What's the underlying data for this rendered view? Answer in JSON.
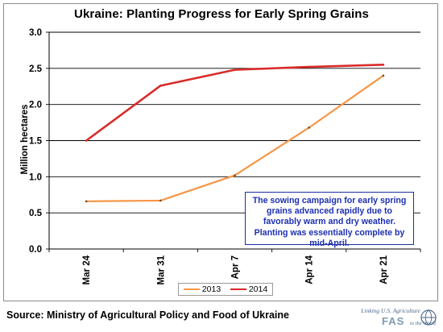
{
  "chart_data": {
    "type": "line",
    "title": "Ukraine:  Planting Progress for Early Spring Grains",
    "xlabel": "",
    "ylabel": "Million hectares",
    "categories": [
      "Mar 24",
      "Mar 31",
      "Apr 7",
      "Apr 14",
      "Apr 21"
    ],
    "ylim": [
      0,
      3
    ],
    "yticks": [
      "0.0",
      "0.5",
      "1.0",
      "1.5",
      "2.0",
      "2.5",
      "3.0"
    ],
    "grid": true,
    "legend_position": "bottom",
    "series": [
      {
        "name": "2013",
        "color": "#f79646",
        "values": [
          0.66,
          0.67,
          1.02,
          1.68,
          2.4
        ]
      },
      {
        "name": "2014",
        "color": "#d92b2b",
        "values": [
          1.5,
          2.26,
          2.48,
          2.52,
          2.55
        ]
      }
    ],
    "annotation": "The sowing campaign for early spring grains advanced rapidly due to favorably warm and dry weather.  Planting was essentially complete by mid-April."
  },
  "source": "Source:  Ministry of Agricultural Policy and Food of Ukraine",
  "logo": {
    "tagline": "Linking U.S. Agriculture",
    "name": "FAS",
    "sub": "to the World"
  }
}
